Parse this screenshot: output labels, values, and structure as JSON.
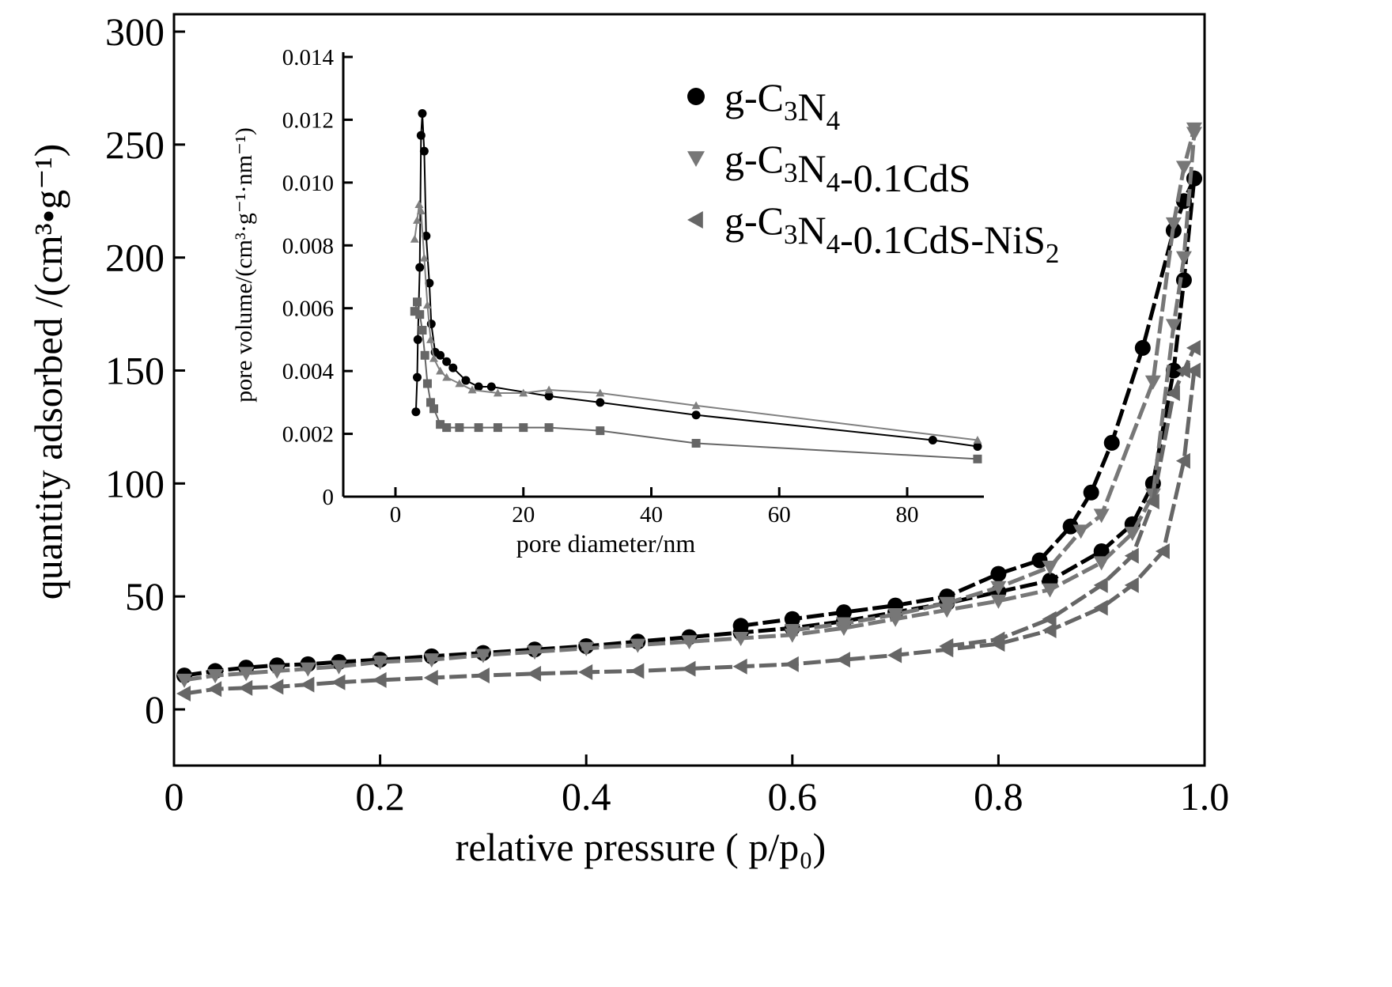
{
  "chart_data": [
    {
      "type": "line",
      "title": "",
      "xlabel": "relative pressure ( p/p₀)",
      "ylabel": "quantity adsorbed /(cm³•g⁻¹)",
      "xlim": [
        0,
        1.0
      ],
      "ylim": [
        -25,
        300
      ],
      "xticks": [
        "0",
        "0.2",
        "0.4",
        "0.6",
        "0.8",
        "1.0"
      ],
      "xtick_values": [
        0,
        0.2,
        0.4,
        0.6,
        0.8,
        1.0
      ],
      "yticks": [
        "0",
        "50",
        "100",
        "150",
        "200",
        "250",
        "300"
      ],
      "ytick_values": [
        0,
        50,
        100,
        150,
        200,
        250,
        300
      ],
      "grid": false,
      "legend_position": "top-right",
      "series": [
        {
          "name": "g-C3N4",
          "marker": "circle",
          "color": "#000000",
          "adsorption": {
            "x": [
              0.01,
              0.04,
              0.07,
              0.1,
              0.13,
              0.16,
              0.2,
              0.25,
              0.3,
              0.35,
              0.4,
              0.45,
              0.5,
              0.55,
              0.6,
              0.65,
              0.7,
              0.75,
              0.8,
              0.85,
              0.9,
              0.93,
              0.95,
              0.97,
              0.98,
              0.99
            ],
            "y": [
              15,
              17,
              18.5,
              19.5,
              20,
              21,
              22,
              23.5,
              25,
              26.5,
              28,
              30,
              32,
              34,
              36,
              39,
              43,
              47,
              52,
              57,
              70,
              82,
              100,
              150,
              190,
              235
            ]
          },
          "desorption": {
            "x": [
              0.55,
              0.6,
              0.65,
              0.7,
              0.75,
              0.8,
              0.84,
              0.87,
              0.89,
              0.91,
              0.94,
              0.97,
              0.98,
              0.99
            ],
            "y": [
              37,
              40,
              43,
              46,
              50,
              60,
              66,
              81,
              96,
              118,
              160,
              212,
              225,
              235
            ]
          }
        },
        {
          "name": "g-C3N4-0.1CdS",
          "marker": "triangle-down",
          "color": "#777777",
          "adsorption": {
            "x": [
              0.01,
              0.04,
              0.07,
              0.1,
              0.13,
              0.16,
              0.2,
              0.25,
              0.3,
              0.35,
              0.4,
              0.45,
              0.5,
              0.55,
              0.6,
              0.65,
              0.7,
              0.75,
              0.8,
              0.85,
              0.9,
              0.93,
              0.95,
              0.97,
              0.98,
              0.99
            ],
            "y": [
              13,
              15,
              16,
              17,
              18,
              19,
              21,
              22,
              24,
              25.5,
              27,
              28.5,
              30,
              31.5,
              33,
              36,
              40,
              44,
              48,
              53,
              65,
              78,
              95,
              170,
              200,
              255
            ]
          },
          "desorption": {
            "x": [
              0.6,
              0.65,
              0.7,
              0.75,
              0.8,
              0.85,
              0.88,
              0.9,
              0.95,
              0.97,
              0.98,
              0.99
            ],
            "y": [
              35,
              38,
              42,
              47,
              54,
              63,
              79,
              86,
              145,
              215,
              240,
              257
            ]
          }
        },
        {
          "name": "g-C3N4-0.1CdS-NiS2",
          "marker": "triangle-left",
          "color": "#666666",
          "adsorption": {
            "x": [
              0.01,
              0.04,
              0.07,
              0.1,
              0.13,
              0.16,
              0.2,
              0.25,
              0.3,
              0.35,
              0.4,
              0.45,
              0.5,
              0.55,
              0.6,
              0.65,
              0.7,
              0.75,
              0.8,
              0.85,
              0.9,
              0.93,
              0.96,
              0.98,
              0.99
            ],
            "y": [
              7,
              9,
              9.5,
              10,
              11,
              12,
              13,
              14,
              15,
              15.8,
              16.5,
              17,
              18,
              19,
              20,
              22,
              24,
              26.5,
              29,
              35,
              45,
              55,
              70,
              110,
              150
            ]
          },
          "desorption": {
            "x": [
              0.75,
              0.8,
              0.85,
              0.9,
              0.93,
              0.95,
              0.97,
              0.98,
              0.99
            ],
            "y": [
              28,
              31,
              40,
              55,
              68,
              92,
              140,
              150,
              160
            ]
          }
        }
      ]
    },
    {
      "type": "line",
      "title": "",
      "xlabel": "pore diameter/nm",
      "ylabel": "pore volume/(cm³·g⁻¹·nm⁻¹)",
      "xlim": [
        -8,
        92
      ],
      "ylim": [
        0,
        0.014
      ],
      "xticks": [
        "0",
        "20",
        "40",
        "60",
        "80"
      ],
      "xtick_values": [
        0,
        20,
        40,
        60,
        80
      ],
      "yticks": [
        "0",
        "0.002",
        "0.004",
        "0.006",
        "0.008",
        "0.010",
        "0.012",
        "0.014"
      ],
      "ytick_values": [
        0,
        0.002,
        0.004,
        0.006,
        0.008,
        0.01,
        0.012,
        0.014
      ],
      "grid": false,
      "series": [
        {
          "name": "g-C3N4",
          "marker": "circle",
          "color": "#000000",
          "x": [
            3.2,
            3.4,
            3.5,
            3.8,
            4.0,
            4.2,
            4.5,
            4.8,
            5.3,
            5.6,
            6.2,
            7,
            8,
            9,
            11,
            13,
            15,
            24,
            32,
            47,
            84,
            91
          ],
          "y": [
            0.0027,
            0.0038,
            0.005,
            0.0073,
            0.0115,
            0.0122,
            0.011,
            0.0083,
            0.0068,
            0.0055,
            0.0046,
            0.0045,
            0.0043,
            0.0041,
            0.0037,
            0.0035,
            0.0035,
            0.0032,
            0.003,
            0.0026,
            0.0018,
            0.0016
          ]
        },
        {
          "name": "g-C3N4-0.1CdS",
          "marker": "triangle-up",
          "color": "#808080",
          "x": [
            3,
            3.4,
            3.7,
            4,
            4.5,
            5,
            5.5,
            6,
            7,
            8,
            10,
            12,
            16,
            20,
            24,
            32,
            47,
            91
          ],
          "y": [
            0.0082,
            0.0088,
            0.0093,
            0.0091,
            0.0076,
            0.0061,
            0.005,
            0.0044,
            0.004,
            0.0038,
            0.0036,
            0.0034,
            0.0033,
            0.0033,
            0.0034,
            0.0033,
            0.0029,
            0.0018
          ]
        },
        {
          "name": "g-C3N4-0.1CdS-NiS2",
          "marker": "square",
          "color": "#666666",
          "x": [
            3,
            3.4,
            3.8,
            4.2,
            4.6,
            5,
            5.5,
            6,
            7,
            8,
            10,
            13,
            16,
            20,
            24,
            32,
            47,
            91
          ],
          "y": [
            0.0059,
            0.0062,
            0.0058,
            0.0053,
            0.0045,
            0.0036,
            0.003,
            0.0028,
            0.0023,
            0.0022,
            0.0022,
            0.0022,
            0.0022,
            0.0022,
            0.0022,
            0.0021,
            0.0017,
            0.0012
          ]
        }
      ]
    }
  ]
}
